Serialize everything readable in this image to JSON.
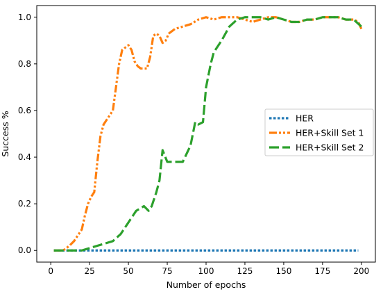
{
  "chart_data": {
    "type": "line",
    "xlabel": "Number of epochs",
    "ylabel": "Success %",
    "xlim": [
      -9,
      209
    ],
    "ylim": [
      -0.05,
      1.05
    ],
    "xticks": [
      0,
      25,
      50,
      75,
      100,
      125,
      150,
      175,
      200
    ],
    "yticks": [
      0.0,
      0.2,
      0.4,
      0.6,
      0.8,
      1.0
    ],
    "grid": false,
    "legend_position": "center-right",
    "series": [
      {
        "name": "HER",
        "color": "#1f77b4",
        "linestyle": "dotted",
        "x": [
          2,
          50,
          100,
          150,
          198
        ],
        "y": [
          0.0,
          0.0,
          0.0,
          0.0,
          0.0
        ]
      },
      {
        "name": "HER+Skill Set 1",
        "color": "#ff7f0e",
        "linestyle": "dashdotdot",
        "x": [
          2,
          5,
          8,
          12,
          15,
          18,
          20,
          22,
          24,
          26,
          28,
          30,
          32,
          34,
          36,
          38,
          40,
          42,
          44,
          46,
          48,
          50,
          52,
          54,
          56,
          58,
          60,
          62,
          64,
          66,
          68,
          70,
          72,
          74,
          76,
          78,
          80,
          85,
          90,
          95,
          100,
          105,
          110,
          115,
          120,
          125,
          130,
          135,
          140,
          145,
          150,
          155,
          160,
          165,
          170,
          175,
          180,
          185,
          190,
          195,
          198,
          200
        ],
        "y": [
          0.0,
          0.0,
          0.0,
          0.02,
          0.04,
          0.07,
          0.09,
          0.15,
          0.2,
          0.23,
          0.25,
          0.38,
          0.49,
          0.54,
          0.56,
          0.58,
          0.6,
          0.7,
          0.8,
          0.86,
          0.87,
          0.88,
          0.86,
          0.81,
          0.79,
          0.78,
          0.78,
          0.78,
          0.83,
          0.92,
          0.93,
          0.92,
          0.89,
          0.9,
          0.93,
          0.94,
          0.95,
          0.96,
          0.97,
          0.99,
          1.0,
          0.99,
          1.0,
          1.0,
          1.0,
          0.99,
          0.98,
          0.99,
          1.0,
          1.0,
          0.99,
          0.98,
          0.98,
          0.99,
          0.99,
          1.0,
          1.0,
          1.0,
          0.99,
          0.99,
          0.98,
          0.95
        ]
      },
      {
        "name": "HER+Skill Set 2",
        "color": "#2ca02c",
        "linestyle": "dashed",
        "x": [
          2,
          10,
          20,
          25,
          30,
          35,
          40,
          45,
          50,
          55,
          60,
          63,
          65,
          68,
          70,
          72,
          75,
          80,
          85,
          90,
          93,
          95,
          98,
          100,
          103,
          105,
          108,
          110,
          115,
          120,
          125,
          130,
          135,
          140,
          145,
          150,
          155,
          160,
          165,
          170,
          175,
          180,
          185,
          190,
          195,
          200
        ],
        "y": [
          0.0,
          0.0,
          0.0,
          0.01,
          0.02,
          0.03,
          0.04,
          0.07,
          0.12,
          0.17,
          0.19,
          0.17,
          0.19,
          0.25,
          0.3,
          0.43,
          0.38,
          0.38,
          0.38,
          0.45,
          0.55,
          0.54,
          0.55,
          0.7,
          0.8,
          0.85,
          0.88,
          0.9,
          0.96,
          0.99,
          1.0,
          1.0,
          1.0,
          0.99,
          1.0,
          0.99,
          0.98,
          0.98,
          0.99,
          0.99,
          1.0,
          1.0,
          1.0,
          0.99,
          0.99,
          0.96
        ]
      }
    ]
  }
}
